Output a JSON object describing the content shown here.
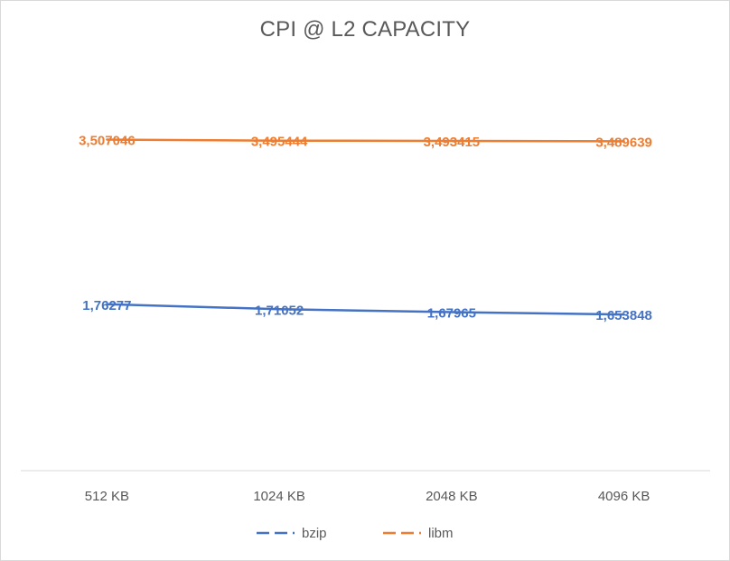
{
  "chart_data": {
    "type": "line",
    "title": "CPI @ L2 CAPACITY",
    "xlabel": "",
    "ylabel": "",
    "categories": [
      "512 KB",
      "1024 KB",
      "2048 KB",
      "4096 KB"
    ],
    "series": [
      {
        "name": "bzip",
        "color": "#4472c4",
        "values": [
          1.76277,
          1.71052,
          1.67965,
          1.653848
        ],
        "labels": [
          "1,76277",
          "1,71052",
          "1,67965",
          "1,653848"
        ]
      },
      {
        "name": "libm",
        "color": "#ed7d31",
        "values": [
          3.507046,
          3.495444,
          3.493415,
          3.489639
        ],
        "labels": [
          "3,507046",
          "3,495444",
          "3,493415",
          "3,489639"
        ]
      }
    ],
    "ylim": [
      0,
      4
    ],
    "grid": false,
    "legend": "bottom"
  }
}
